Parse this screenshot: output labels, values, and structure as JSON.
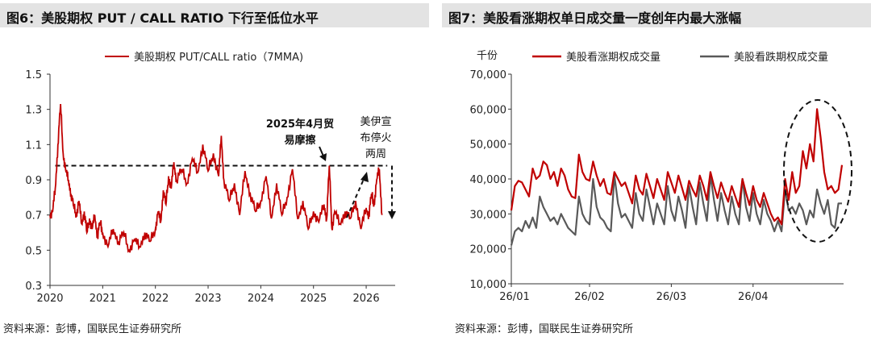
{
  "left": {
    "title": "图6：美股期权 PUT / CALL RATIO 下行至低位水平",
    "source": "资料来源：彭博，国联民生证券研究所",
    "annotations": {
      "trade_line1": "2025年4月贸",
      "trade_line2": "易摩擦",
      "ceasefire": [
        "美伊宣",
        "布停火",
        "两周"
      ]
    },
    "chart_data": {
      "type": "line",
      "title": "",
      "ylim": [
        0.3,
        1.5
      ],
      "yticks": [
        "1.5",
        "1.3",
        "1.1",
        "0.9",
        "0.7",
        "0.5",
        "0.3"
      ],
      "xticks": [
        "2020",
        "2021",
        "2022",
        "2023",
        "2024",
        "2025",
        "2026"
      ],
      "reference_line": 0.98,
      "series": [
        {
          "name": "美股期权 PUT/CALL ratio（7MMA)",
          "color": "#c00000",
          "x": [
            2020.0,
            2020.05,
            2020.1,
            2020.15,
            2020.2,
            2020.25,
            2020.3,
            2020.35,
            2020.4,
            2020.45,
            2020.5,
            2020.55,
            2020.6,
            2020.65,
            2020.7,
            2020.75,
            2020.8,
            2020.85,
            2020.9,
            2020.95,
            2021.0,
            2021.1,
            2021.2,
            2021.3,
            2021.4,
            2021.5,
            2021.6,
            2021.7,
            2021.8,
            2021.9,
            2022.0,
            2022.05,
            2022.1,
            2022.15,
            2022.2,
            2022.25,
            2022.3,
            2022.35,
            2022.4,
            2022.5,
            2022.6,
            2022.7,
            2022.8,
            2022.9,
            2023.0,
            2023.1,
            2023.2,
            2023.25,
            2023.3,
            2023.4,
            2023.5,
            2023.6,
            2023.7,
            2023.8,
            2023.9,
            2024.0,
            2024.1,
            2024.2,
            2024.3,
            2024.4,
            2024.5,
            2024.6,
            2024.7,
            2024.8,
            2024.9,
            2025.0,
            2025.1,
            2025.2,
            2025.25,
            2025.3,
            2025.35,
            2025.4,
            2025.5,
            2025.6,
            2025.7,
            2025.8,
            2025.9,
            2026.0,
            2026.05,
            2026.1,
            2026.15,
            2026.2,
            2026.25,
            2026.3
          ],
          "values": [
            0.7,
            0.72,
            0.85,
            1.1,
            1.33,
            1.05,
            0.95,
            0.9,
            0.82,
            0.75,
            0.7,
            0.78,
            0.65,
            0.72,
            0.6,
            0.68,
            0.62,
            0.7,
            0.58,
            0.66,
            0.6,
            0.52,
            0.62,
            0.55,
            0.6,
            0.5,
            0.56,
            0.52,
            0.6,
            0.55,
            0.62,
            0.72,
            0.66,
            0.84,
            0.76,
            0.92,
            0.85,
            1.0,
            0.9,
            0.96,
            0.88,
            1.02,
            0.94,
            1.1,
            0.95,
            1.05,
            0.92,
            1.15,
            0.9,
            0.78,
            0.88,
            0.7,
            0.95,
            0.82,
            0.72,
            0.78,
            0.92,
            0.68,
            0.88,
            0.7,
            0.8,
            0.96,
            0.68,
            0.78,
            0.62,
            0.72,
            0.66,
            0.76,
            0.68,
            0.98,
            0.62,
            0.72,
            0.65,
            0.72,
            0.68,
            0.78,
            0.62,
            0.74,
            0.7,
            0.82,
            0.76,
            0.9,
            0.96,
            0.7
          ]
        }
      ]
    }
  },
  "right": {
    "title": "图7：美股看涨期权单日成交量一度创年内最大涨幅",
    "source": "资料来源：彭博，国联民生证券研究所",
    "chart_data": {
      "type": "line",
      "title": "",
      "ylabel": "千份",
      "ylim": [
        10000,
        70000
      ],
      "yticks": [
        "70,000",
        "60,000",
        "50,000",
        "40,000",
        "30,000",
        "20,000",
        "10,000"
      ],
      "xticks": [
        "26/01",
        "26/02",
        "26/03",
        "26/04"
      ],
      "series": [
        {
          "name": "美股看涨期权成交量",
          "color": "#c00000",
          "values": [
            31000,
            38000,
            39500,
            39000,
            37000,
            35000,
            43000,
            40000,
            41000,
            45000,
            44000,
            40000,
            42000,
            38000,
            43000,
            41000,
            37000,
            35000,
            34500,
            47000,
            42000,
            40000,
            39500,
            45000,
            41000,
            38000,
            40000,
            36000,
            35500,
            42000,
            40000,
            38000,
            39000,
            36000,
            33000,
            41000,
            37000,
            35500,
            41500,
            38000,
            34500,
            40000,
            37000,
            34000,
            42000,
            39000,
            36000,
            41000,
            37500,
            34000,
            39500,
            37000,
            35000,
            41000,
            38000,
            34000,
            42000,
            38000,
            34500,
            39000,
            36000,
            33500,
            38000,
            35000,
            32000,
            40000,
            36000,
            32500,
            38000,
            34000,
            32000,
            36000,
            33000,
            30000,
            28000,
            29000,
            27000,
            40000,
            34000,
            42000,
            36000,
            38000,
            48000,
            43000,
            50000,
            45000,
            60000,
            52000,
            42000,
            37000,
            38000,
            36000,
            37000,
            44000
          ]
        },
        {
          "name": "美股看跌期权成交量",
          "color": "#595959",
          "values": [
            21000,
            25000,
            26000,
            25000,
            28000,
            26000,
            29000,
            26000,
            35000,
            32000,
            30000,
            28000,
            29000,
            27000,
            30000,
            28000,
            26000,
            25000,
            24000,
            35000,
            30000,
            28000,
            27000,
            40000,
            32000,
            29000,
            28000,
            26000,
            25000,
            41000,
            33000,
            29000,
            30000,
            28000,
            26000,
            36000,
            30000,
            28000,
            37000,
            32000,
            27000,
            33000,
            30000,
            27000,
            38000,
            31000,
            28000,
            35000,
            31000,
            26000,
            38000,
            32000,
            27000,
            39000,
            33000,
            28000,
            41000,
            34000,
            28000,
            36000,
            31000,
            27000,
            35000,
            30000,
            27000,
            40000,
            32000,
            28000,
            36000,
            30000,
            27000,
            34000,
            30000,
            28000,
            25000,
            28000,
            25000,
            37000,
            31000,
            32000,
            30000,
            33000,
            31000,
            27000,
            31000,
            29000,
            37000,
            33000,
            30000,
            34000,
            27000,
            26000,
            33000,
            33000
          ]
        }
      ]
    }
  }
}
